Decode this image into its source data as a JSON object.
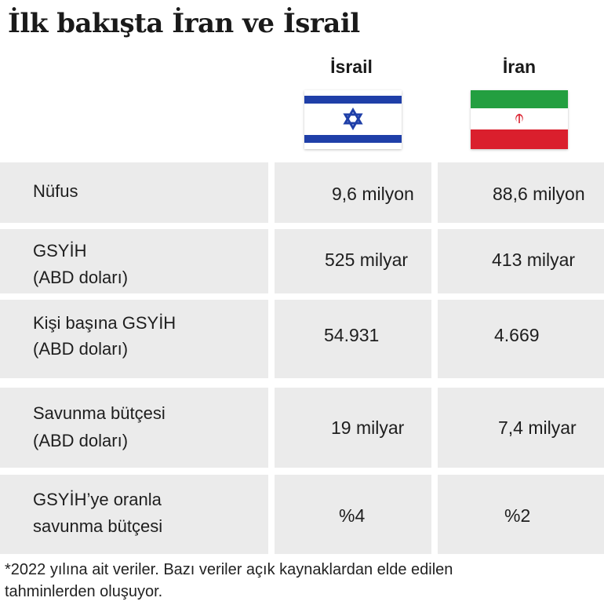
{
  "title": "İlk bakışta İran ve İsrail",
  "columns": [
    {
      "name": "İsrail",
      "flag_icon": "israel-flag-icon",
      "colors": {
        "blue": "#1f3fa8",
        "white": "#ffffff"
      }
    },
    {
      "name": "İran",
      "flag_icon": "iran-flag-icon",
      "colors": {
        "green": "#239f40",
        "white": "#ffffff",
        "red": "#da1f2d"
      }
    }
  ],
  "rows": [
    {
      "label_line1": "Nüfus",
      "label_line2": "",
      "israel": "9,6 milyon",
      "iran": "88,6 milyon"
    },
    {
      "label_line1": "GSYİH",
      "label_line2": "(ABD doları)",
      "israel": "525 milyar",
      "iran": "413 milyar"
    },
    {
      "label_line1": "Kişi başına GSYİH",
      "label_line2": "(ABD doları)",
      "israel": "54.931",
      "iran": "4.669"
    },
    {
      "label_line1": "Savunma bütçesi",
      "label_line2": "(ABD doları)",
      "israel": "19 milyar",
      "iran": "7,4 milyar"
    },
    {
      "label_line1": "GSYİH’ye oranla",
      "label_line2": "savunma bütçesi",
      "israel": "%4",
      "iran": "%2"
    }
  ],
  "footnote_line1": "*2022 yılına ait veriler. Bazı veriler açık kaynaklardan elde edilen",
  "footnote_line2": "tahminlerden oluşuyor.",
  "cell_color": "#ebebeb"
}
